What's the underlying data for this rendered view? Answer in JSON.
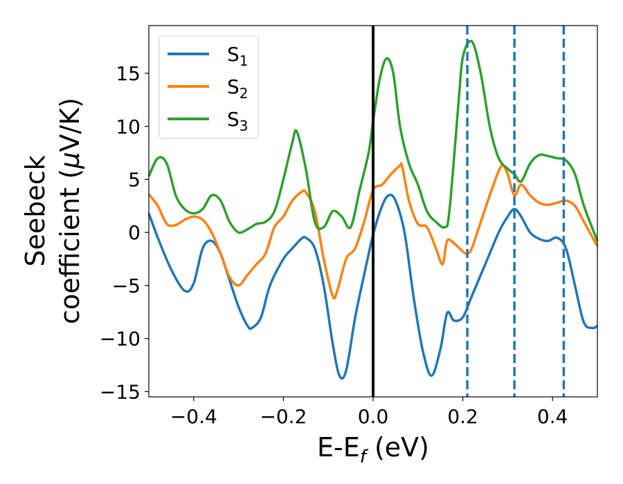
{
  "chart_data": {
    "type": "line",
    "title": "",
    "xlabel": {
      "main": "E-E",
      "sub": "f",
      "unit": " (eV)"
    },
    "ylabel": {
      "line1": "Seebeck",
      "line2": "coefficient  (",
      "mu": "μ",
      "line2_end": "V/K)"
    },
    "xlim": [
      -0.5,
      0.5
    ],
    "ylim": [
      -15.5,
      19.5
    ],
    "xticks": [
      -0.4,
      -0.2,
      0.0,
      0.2,
      0.4
    ],
    "xtick_labels": [
      "−0.4",
      "−0.2",
      "0.0",
      "0.2",
      "0.4"
    ],
    "yticks": [
      -15,
      -10,
      -5,
      0,
      5,
      10,
      15
    ],
    "ytick_labels": [
      "−15",
      "−10",
      "−5",
      "0",
      "5",
      "10",
      "15"
    ],
    "grid": false,
    "legend_position": "top-left",
    "fermi_line_x": 0.0,
    "dashed_lines_x": [
      0.21,
      0.315,
      0.425
    ],
    "dashed_color": "#1f77b4",
    "series": [
      {
        "name": "S",
        "sub": "1",
        "color": "#1f77b4",
        "x": [
          -0.5,
          -0.48,
          -0.45,
          -0.42,
          -0.4,
          -0.38,
          -0.36,
          -0.34,
          -0.32,
          -0.3,
          -0.28,
          -0.27,
          -0.25,
          -0.23,
          -0.2,
          -0.18,
          -0.16,
          -0.15,
          -0.13,
          -0.11,
          -0.09,
          -0.075,
          -0.06,
          -0.04,
          -0.02,
          0.0,
          0.02,
          0.035,
          0.05,
          0.07,
          0.09,
          0.11,
          0.13,
          0.15,
          0.165,
          0.18,
          0.2,
          0.22,
          0.25,
          0.28,
          0.3,
          0.315,
          0.33,
          0.35,
          0.37,
          0.39,
          0.41,
          0.43,
          0.45,
          0.47,
          0.49,
          0.5
        ],
        "y": [
          1.8,
          -0.5,
          -3.5,
          -5.5,
          -4.8,
          -1.5,
          -0.8,
          -2.0,
          -4.5,
          -7.0,
          -8.8,
          -9.0,
          -8.0,
          -5.0,
          -2.5,
          -1.5,
          -0.6,
          -0.5,
          -1.5,
          -5.0,
          -10.5,
          -13.5,
          -13.0,
          -8.0,
          -4.0,
          -0.2,
          2.5,
          3.5,
          3.0,
          0.0,
          -6.0,
          -11.0,
          -13.5,
          -11.0,
          -7.6,
          -8.3,
          -8.0,
          -6.0,
          -3.0,
          0.0,
          1.5,
          2.2,
          1.5,
          0.0,
          -0.6,
          -0.8,
          -0.5,
          -1.5,
          -5.0,
          -8.5,
          -9.0,
          -8.8
        ]
      },
      {
        "name": "S",
        "sub": "2",
        "color": "#ff7f0e",
        "x": [
          -0.5,
          -0.48,
          -0.46,
          -0.44,
          -0.42,
          -0.4,
          -0.38,
          -0.36,
          -0.34,
          -0.32,
          -0.3,
          -0.28,
          -0.26,
          -0.24,
          -0.22,
          -0.2,
          -0.18,
          -0.16,
          -0.15,
          -0.13,
          -0.11,
          -0.09,
          -0.08,
          -0.06,
          -0.04,
          -0.02,
          0.0,
          0.02,
          0.04,
          0.06,
          0.065,
          0.08,
          0.1,
          0.12,
          0.14,
          0.155,
          0.165,
          0.18,
          0.2,
          0.21,
          0.22,
          0.24,
          0.26,
          0.28,
          0.29,
          0.3,
          0.315,
          0.33,
          0.35,
          0.37,
          0.39,
          0.41,
          0.43,
          0.45,
          0.47,
          0.5
        ],
        "y": [
          3.6,
          2.5,
          0.8,
          0.7,
          1.2,
          1.5,
          1.2,
          0.0,
          -2.0,
          -4.2,
          -5.0,
          -4.0,
          -3.0,
          -2.0,
          0.5,
          1.5,
          3.0,
          3.8,
          3.8,
          2.0,
          -2.5,
          -6.0,
          -5.5,
          -2.5,
          -1.5,
          1.0,
          4.0,
          4.5,
          5.5,
          6.3,
          6.2,
          3.0,
          0.8,
          0.5,
          -1.5,
          -3.0,
          -0.8,
          -1.0,
          -1.8,
          -2.0,
          -1.5,
          1.0,
          3.5,
          5.8,
          6.3,
          5.5,
          3.5,
          4.5,
          3.5,
          2.8,
          2.6,
          2.8,
          3.0,
          2.5,
          1.0,
          -1.3
        ]
      },
      {
        "name": "S",
        "sub": "3",
        "color": "#2ca02c",
        "x": [
          -0.5,
          -0.48,
          -0.46,
          -0.44,
          -0.42,
          -0.4,
          -0.38,
          -0.36,
          -0.34,
          -0.32,
          -0.3,
          -0.28,
          -0.26,
          -0.24,
          -0.22,
          -0.2,
          -0.18,
          -0.17,
          -0.15,
          -0.13,
          -0.11,
          -0.09,
          -0.07,
          -0.05,
          -0.03,
          -0.01,
          0.0,
          0.015,
          0.03,
          0.045,
          0.06,
          0.08,
          0.1,
          0.12,
          0.14,
          0.16,
          0.17,
          0.19,
          0.2,
          0.22,
          0.24,
          0.26,
          0.28,
          0.3,
          0.315,
          0.33,
          0.35,
          0.37,
          0.39,
          0.41,
          0.43,
          0.45,
          0.47,
          0.5
        ],
        "y": [
          5.3,
          7.0,
          6.5,
          3.5,
          2.2,
          1.8,
          2.2,
          3.5,
          3.0,
          1.0,
          0.0,
          0.3,
          0.8,
          1.0,
          2.0,
          5.0,
          8.5,
          9.5,
          6.0,
          1.0,
          0.5,
          2.0,
          1.5,
          0.5,
          4.0,
          7.5,
          10.5,
          14.5,
          16.4,
          15.0,
          10.0,
          6.5,
          4.5,
          2.0,
          1.0,
          0.5,
          2.0,
          12.0,
          16.5,
          18.0,
          15.0,
          10.0,
          7.0,
          6.0,
          5.5,
          4.8,
          6.5,
          7.3,
          7.2,
          7.0,
          6.8,
          5.5,
          2.5,
          -0.8
        ]
      }
    ]
  }
}
